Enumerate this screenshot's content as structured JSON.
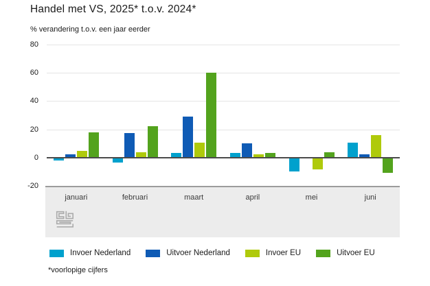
{
  "header": {
    "title": "Handel met VS, 2025* t.o.v. 2024*",
    "subtitle": "% verandering t.o.v. een jaar eerder"
  },
  "footer": {
    "note": "*voorlopige cijfers",
    "logo": "cbs-logo"
  },
  "colors": {
    "invoer_nl": "#00a1cd",
    "uitvoer_nl": "#0f5bb5",
    "invoer_eu": "#afca0b",
    "uitvoer_eu": "#53a31d",
    "grid": "#e4e4e4",
    "zero_line": "#4a4a4a",
    "band_background": "#ececec",
    "band_border": "#9c9c9c",
    "logo_gray": "#ababab"
  },
  "chart_data": {
    "type": "bar",
    "title": "Handel met VS, 2025* t.o.v. 2024*",
    "ylabel": "% verandering t.o.v. een jaar eerder",
    "categories": [
      "januari",
      "februari",
      "maart",
      "april",
      "mei",
      "juni"
    ],
    "series": [
      {
        "name": "Invoer Nederland",
        "color_key": "invoer_nl",
        "values": [
          -2,
          -3.5,
          3.5,
          3.5,
          -10,
          10.5
        ]
      },
      {
        "name": "Uitvoer Nederland",
        "color_key": "uitvoer_nl",
        "values": [
          2.5,
          17.5,
          29,
          10,
          0,
          2.5
        ]
      },
      {
        "name": "Invoer EU",
        "color_key": "invoer_eu",
        "values": [
          5,
          4,
          10.5,
          2.5,
          -8.5,
          16
        ]
      },
      {
        "name": "Uitvoer EU",
        "color_key": "uitvoer_eu",
        "values": [
          18,
          22,
          60,
          3.5,
          4,
          -11
        ]
      }
    ],
    "ylim": [
      -20,
      80
    ],
    "yticks": [
      80,
      60,
      40,
      20,
      0,
      -20
    ],
    "grid": true,
    "legend_position": "bottom"
  }
}
